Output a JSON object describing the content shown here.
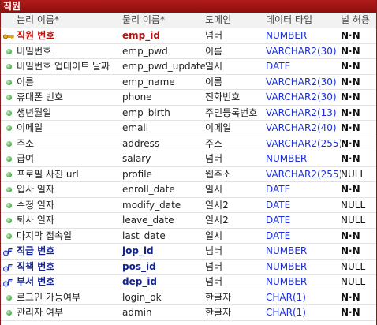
{
  "entity": {
    "title": "직원"
  },
  "headers": {
    "logical": "논리 이름*",
    "physical": "물리 이름*",
    "domain": "도메인",
    "datatype": "데이터 타입",
    "nullable": "널 허용"
  },
  "colors": {
    "titlebar": "#9d1414",
    "pk_text": "#b80d0d",
    "fk_text": "#13238f",
    "datatype_text": "#1a2fd8"
  },
  "rows": [
    {
      "icon": "primary-key-icon",
      "logical": "직원 번호",
      "physical": "emp_id",
      "domain": "넘버",
      "type": "NUMBER",
      "null": "N·N",
      "kind": "pk"
    },
    {
      "icon": "attribute-dot-icon",
      "logical": "비밀번호",
      "physical": "emp_pwd",
      "domain": "이름",
      "type": "VARCHAR2(30)",
      "null": "N·N",
      "kind": "attr"
    },
    {
      "icon": "attribute-dot-icon",
      "logical": "비밀번호 업데이트 날짜",
      "physical": "emp_pwd_update",
      "domain": "일시",
      "type": "DATE",
      "null": "N·N",
      "kind": "attr"
    },
    {
      "icon": "attribute-dot-icon",
      "logical": "이름",
      "physical": "emp_name",
      "domain": "이름",
      "type": "VARCHAR2(30)",
      "null": "N·N",
      "kind": "attr"
    },
    {
      "icon": "attribute-dot-icon",
      "logical": "휴대폰 번호",
      "physical": "phone",
      "domain": "전화번호",
      "type": "VARCHAR2(30)",
      "null": "N·N",
      "kind": "attr"
    },
    {
      "icon": "attribute-dot-icon",
      "logical": "생년월일",
      "physical": "emp_birth",
      "domain": "주민등록번호",
      "type": "VARCHAR2(13)",
      "null": "N·N",
      "kind": "attr"
    },
    {
      "icon": "attribute-dot-icon",
      "logical": "이메일",
      "physical": "email",
      "domain": "이메일",
      "type": "VARCHAR2(40)",
      "null": "N·N",
      "kind": "attr"
    },
    {
      "icon": "attribute-dot-icon",
      "logical": "주소",
      "physical": "address",
      "domain": "주소",
      "type": "VARCHAR2(255)",
      "null": "N·N",
      "kind": "attr"
    },
    {
      "icon": "attribute-dot-icon",
      "logical": "급여",
      "physical": "salary",
      "domain": "넘버",
      "type": "NUMBER",
      "null": "N·N",
      "kind": "attr"
    },
    {
      "icon": "attribute-dot-icon",
      "logical": "프로필 사진 url",
      "physical": "profile",
      "domain": "웹주소",
      "type": "VARCHAR2(255)",
      "null": "NULL",
      "kind": "attr"
    },
    {
      "icon": "attribute-dot-icon",
      "logical": "입사 일자",
      "physical": "enroll_date",
      "domain": "일시",
      "type": "DATE",
      "null": "N·N",
      "kind": "attr"
    },
    {
      "icon": "attribute-dot-icon",
      "logical": "수정 일자",
      "physical": "modify_date",
      "domain": "일시2",
      "type": "DATE",
      "null": "NULL",
      "kind": "attr"
    },
    {
      "icon": "attribute-dot-icon",
      "logical": "퇴사 일자",
      "physical": "leave_date",
      "domain": "일시2",
      "type": "DATE",
      "null": "NULL",
      "kind": "attr"
    },
    {
      "icon": "attribute-dot-icon",
      "logical": "마지막 접속일",
      "physical": "last_date",
      "domain": "일시",
      "type": "DATE",
      "null": "N·N",
      "kind": "attr"
    },
    {
      "icon": "foreign-key-icon",
      "logical": "직급 번호",
      "physical": "jop_id",
      "domain": "넘버",
      "type": "NUMBER",
      "null": "N·N",
      "kind": "fk"
    },
    {
      "icon": "foreign-key-icon",
      "logical": "직책 번호",
      "physical": "pos_id",
      "domain": "넘버",
      "type": "NUMBER",
      "null": "NULL",
      "kind": "fk"
    },
    {
      "icon": "foreign-key-icon",
      "logical": "부서 번호",
      "physical": "dep_id",
      "domain": "넘버",
      "type": "NUMBER",
      "null": "NULL",
      "kind": "fk"
    },
    {
      "icon": "attribute-dot-icon",
      "logical": "로그인 가능여부",
      "physical": "login_ok",
      "domain": "한글자",
      "type": "CHAR(1)",
      "null": "N·N",
      "kind": "attr"
    },
    {
      "icon": "attribute-dot-icon",
      "logical": "관리자 여부",
      "physical": "admin",
      "domain": "한글자",
      "type": "CHAR(1)",
      "null": "N·N",
      "kind": "attr"
    }
  ]
}
